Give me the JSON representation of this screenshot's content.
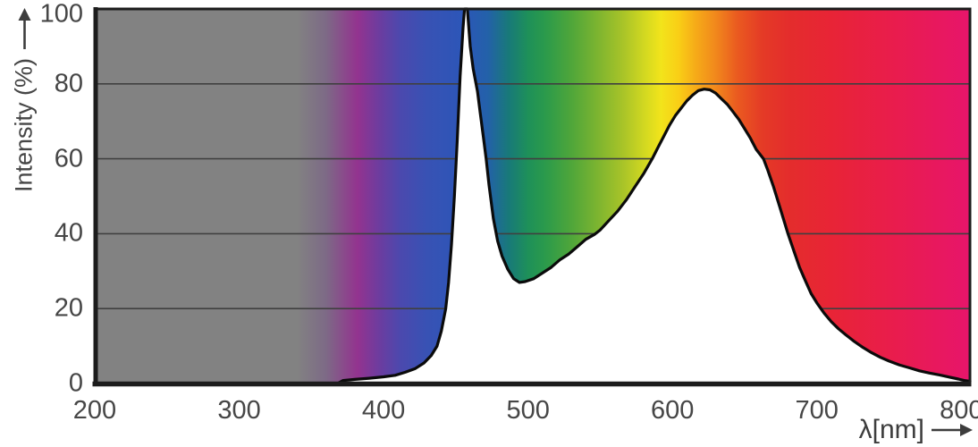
{
  "chart_data": {
    "type": "area",
    "title": "",
    "xlabel": "λ[nm]",
    "ylabel": "Intensity (%)",
    "xlim": [
      200,
      806
    ],
    "ylim": [
      0,
      100
    ],
    "x_ticks": [
      200,
      300,
      400,
      500,
      600,
      700,
      800
    ],
    "y_ticks": [
      0,
      20,
      40,
      60,
      80,
      100
    ],
    "gridlines_y": [
      20,
      40,
      60,
      80
    ],
    "grid": true,
    "legend": false,
    "description": "Spectral power distribution: visible-spectrum colored background above the curve, white below the curve; narrow blue peak at ~456 nm reaching 100%, dip to ~27% near 494 nm, broad phosphor peak of ~78.5% near 620 nm.",
    "series": [
      {
        "name": "spectral power distribution",
        "points": [
          [
            200,
            0
          ],
          [
            368,
            0
          ],
          [
            372,
            0.8
          ],
          [
            380,
            1.1
          ],
          [
            390,
            1.4
          ],
          [
            400,
            1.8
          ],
          [
            408,
            2.2
          ],
          [
            415,
            3
          ],
          [
            422,
            4
          ],
          [
            428,
            5.5
          ],
          [
            433,
            7.5
          ],
          [
            437,
            10
          ],
          [
            440,
            14
          ],
          [
            443,
            20
          ],
          [
            445,
            27
          ],
          [
            447,
            37
          ],
          [
            449,
            50
          ],
          [
            451,
            65
          ],
          [
            453,
            82
          ],
          [
            455,
            95
          ],
          [
            456,
            100
          ],
          [
            458,
            100
          ],
          [
            460,
            90
          ],
          [
            462,
            84
          ],
          [
            465,
            78
          ],
          [
            467,
            72
          ],
          [
            469,
            66
          ],
          [
            471,
            60
          ],
          [
            473,
            53
          ],
          [
            476,
            44
          ],
          [
            479,
            38
          ],
          [
            482,
            34
          ],
          [
            486,
            30.5
          ],
          [
            490,
            28
          ],
          [
            494,
            27
          ],
          [
            498,
            27.2
          ],
          [
            504,
            28
          ],
          [
            510,
            29.5
          ],
          [
            516,
            31
          ],
          [
            522,
            33
          ],
          [
            528,
            34.5
          ],
          [
            534,
            36.5
          ],
          [
            540,
            38.5
          ],
          [
            546,
            39.8
          ],
          [
            550,
            41
          ],
          [
            556,
            43.5
          ],
          [
            562,
            46
          ],
          [
            568,
            49
          ],
          [
            574,
            52.5
          ],
          [
            580,
            56
          ],
          [
            586,
            60
          ],
          [
            590,
            63
          ],
          [
            594,
            66
          ],
          [
            598,
            69
          ],
          [
            602,
            71.5
          ],
          [
            606,
            73.5
          ],
          [
            610,
            75.5
          ],
          [
            614,
            77
          ],
          [
            618,
            78.2
          ],
          [
            622,
            78.6
          ],
          [
            626,
            78.4
          ],
          [
            630,
            77.5
          ],
          [
            634,
            76
          ],
          [
            638,
            74.5
          ],
          [
            642,
            72.5
          ],
          [
            646,
            70.5
          ],
          [
            650,
            68
          ],
          [
            654,
            65.5
          ],
          [
            658,
            62.5
          ],
          [
            663,
            60
          ],
          [
            666,
            57
          ],
          [
            670,
            52.5
          ],
          [
            674,
            47.5
          ],
          [
            678,
            42.5
          ],
          [
            680,
            40
          ],
          [
            684,
            35.5
          ],
          [
            688,
            31
          ],
          [
            692,
            27.5
          ],
          [
            696,
            24
          ],
          [
            700,
            21.5
          ],
          [
            705,
            18.8
          ],
          [
            710,
            16.5
          ],
          [
            715,
            14.6
          ],
          [
            720,
            13
          ],
          [
            726,
            11.2
          ],
          [
            732,
            9.6
          ],
          [
            738,
            8.2
          ],
          [
            744,
            7
          ],
          [
            750,
            6
          ],
          [
            757,
            5
          ],
          [
            764,
            4.2
          ],
          [
            771,
            3.4
          ],
          [
            778,
            2.8
          ],
          [
            785,
            2.3
          ],
          [
            792,
            1.7
          ],
          [
            798,
            1.2
          ],
          [
            802,
            0.8
          ],
          [
            806,
            0.6
          ]
        ]
      }
    ],
    "style": {
      "curve_color": "#0b0b0b",
      "under_curve_fill": "#ffffff",
      "frame_color": "#1c1c1c",
      "grid_color": "#404040",
      "text_color": "#464646",
      "spectrum_gradient": [
        [
          200,
          "#828282"
        ],
        [
          340,
          "#828282"
        ],
        [
          360,
          "#7d6a86"
        ],
        [
          382,
          "#93338f"
        ],
        [
          398,
          "#6a3da0"
        ],
        [
          412,
          "#4b49ae"
        ],
        [
          430,
          "#3852b4"
        ],
        [
          455,
          "#2c56b8"
        ],
        [
          472,
          "#2361a9"
        ],
        [
          487,
          "#187a78"
        ],
        [
          500,
          "#1e9059"
        ],
        [
          512,
          "#2b9a4b"
        ],
        [
          530,
          "#4fa63a"
        ],
        [
          548,
          "#7cb430"
        ],
        [
          566,
          "#a9c428"
        ],
        [
          582,
          "#d6da20"
        ],
        [
          592,
          "#f2e41b"
        ],
        [
          604,
          "#f9cf16"
        ],
        [
          616,
          "#f6ab18"
        ],
        [
          630,
          "#f1881c"
        ],
        [
          645,
          "#ea5a20"
        ],
        [
          662,
          "#e43b26"
        ],
        [
          680,
          "#e42d2c"
        ],
        [
          710,
          "#e82436"
        ],
        [
          750,
          "#e91d4b"
        ],
        [
          806,
          "#e7156b"
        ]
      ]
    }
  }
}
